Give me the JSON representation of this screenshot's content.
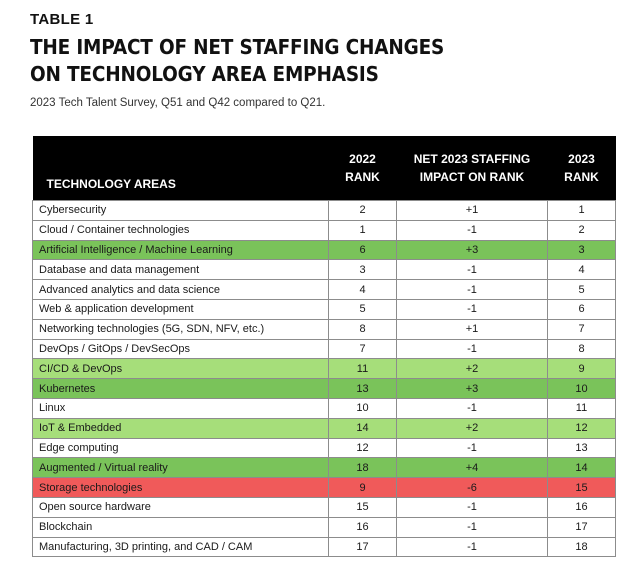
{
  "header": {
    "label": "TABLE 1",
    "title_line1": "THE IMPACT OF NET STAFFING CHANGES",
    "title_line2": "ON TECHNOLOGY AREA EMPHASIS",
    "subtitle": "2023 Tech Talent Survey, Q51 and Q42 compared to Q21."
  },
  "colors": {
    "light_green": "#a6de7a",
    "dark_green": "#7ac35a",
    "red": "#f05a5a",
    "header_bg": "#000000"
  },
  "table": {
    "columns": {
      "area": "TECHNOLOGY AREAS",
      "rank2022_l1": "2022",
      "rank2022_l2": "RANK",
      "impact_l1": "NET 2023 STAFFING",
      "impact_l2": "IMPACT ON RANK",
      "rank2023_l1": "2023",
      "rank2023_l2": "RANK"
    },
    "rows": [
      {
        "area": "Cybersecurity",
        "rank2022": "2",
        "impact": "+1",
        "rank2023": "1",
        "highlight": "none"
      },
      {
        "area": "Cloud / Container technologies",
        "rank2022": "1",
        "impact": "-1",
        "rank2023": "2",
        "highlight": "none"
      },
      {
        "area": "Artificial Intelligence / Machine Learning",
        "rank2022": "6",
        "impact": "+3",
        "rank2023": "3",
        "highlight": "dark-green"
      },
      {
        "area": "Database and data management",
        "rank2022": "3",
        "impact": "-1",
        "rank2023": "4",
        "highlight": "none"
      },
      {
        "area": "Advanced analytics and data science",
        "rank2022": "4",
        "impact": "-1",
        "rank2023": "5",
        "highlight": "none"
      },
      {
        "area": "Web & application development",
        "rank2022": "5",
        "impact": "-1",
        "rank2023": "6",
        "highlight": "none"
      },
      {
        "area": "Networking technologies (5G, SDN, NFV, etc.)",
        "rank2022": "8",
        "impact": "+1",
        "rank2023": "7",
        "highlight": "none"
      },
      {
        "area": "DevOps / GitOps / DevSecOps",
        "rank2022": "7",
        "impact": "-1",
        "rank2023": "8",
        "highlight": "none"
      },
      {
        "area": "CI/CD & DevOps",
        "rank2022": "11",
        "impact": "+2",
        "rank2023": "9",
        "highlight": "light-green"
      },
      {
        "area": "Kubernetes",
        "rank2022": "13",
        "impact": "+3",
        "rank2023": "10",
        "highlight": "dark-green"
      },
      {
        "area": "Linux",
        "rank2022": "10",
        "impact": "-1",
        "rank2023": "11",
        "highlight": "none"
      },
      {
        "area": "IoT & Embedded",
        "rank2022": "14",
        "impact": "+2",
        "rank2023": "12",
        "highlight": "light-green"
      },
      {
        "area": "Edge computing",
        "rank2022": "12",
        "impact": "-1",
        "rank2023": "13",
        "highlight": "none"
      },
      {
        "area": "Augmented / Virtual reality",
        "rank2022": "18",
        "impact": "+4",
        "rank2023": "14",
        "highlight": "dark-green"
      },
      {
        "area": "Storage technologies",
        "rank2022": "9",
        "impact": "-6",
        "rank2023": "15",
        "highlight": "red"
      },
      {
        "area": "Open source hardware",
        "rank2022": "15",
        "impact": "-1",
        "rank2023": "16",
        "highlight": "none"
      },
      {
        "area": "Blockchain",
        "rank2022": "16",
        "impact": "-1",
        "rank2023": "17",
        "highlight": "none"
      },
      {
        "area": "Manufacturing, 3D printing, and CAD / CAM",
        "rank2022": "17",
        "impact": "-1",
        "rank2023": "18",
        "highlight": "none"
      }
    ]
  }
}
